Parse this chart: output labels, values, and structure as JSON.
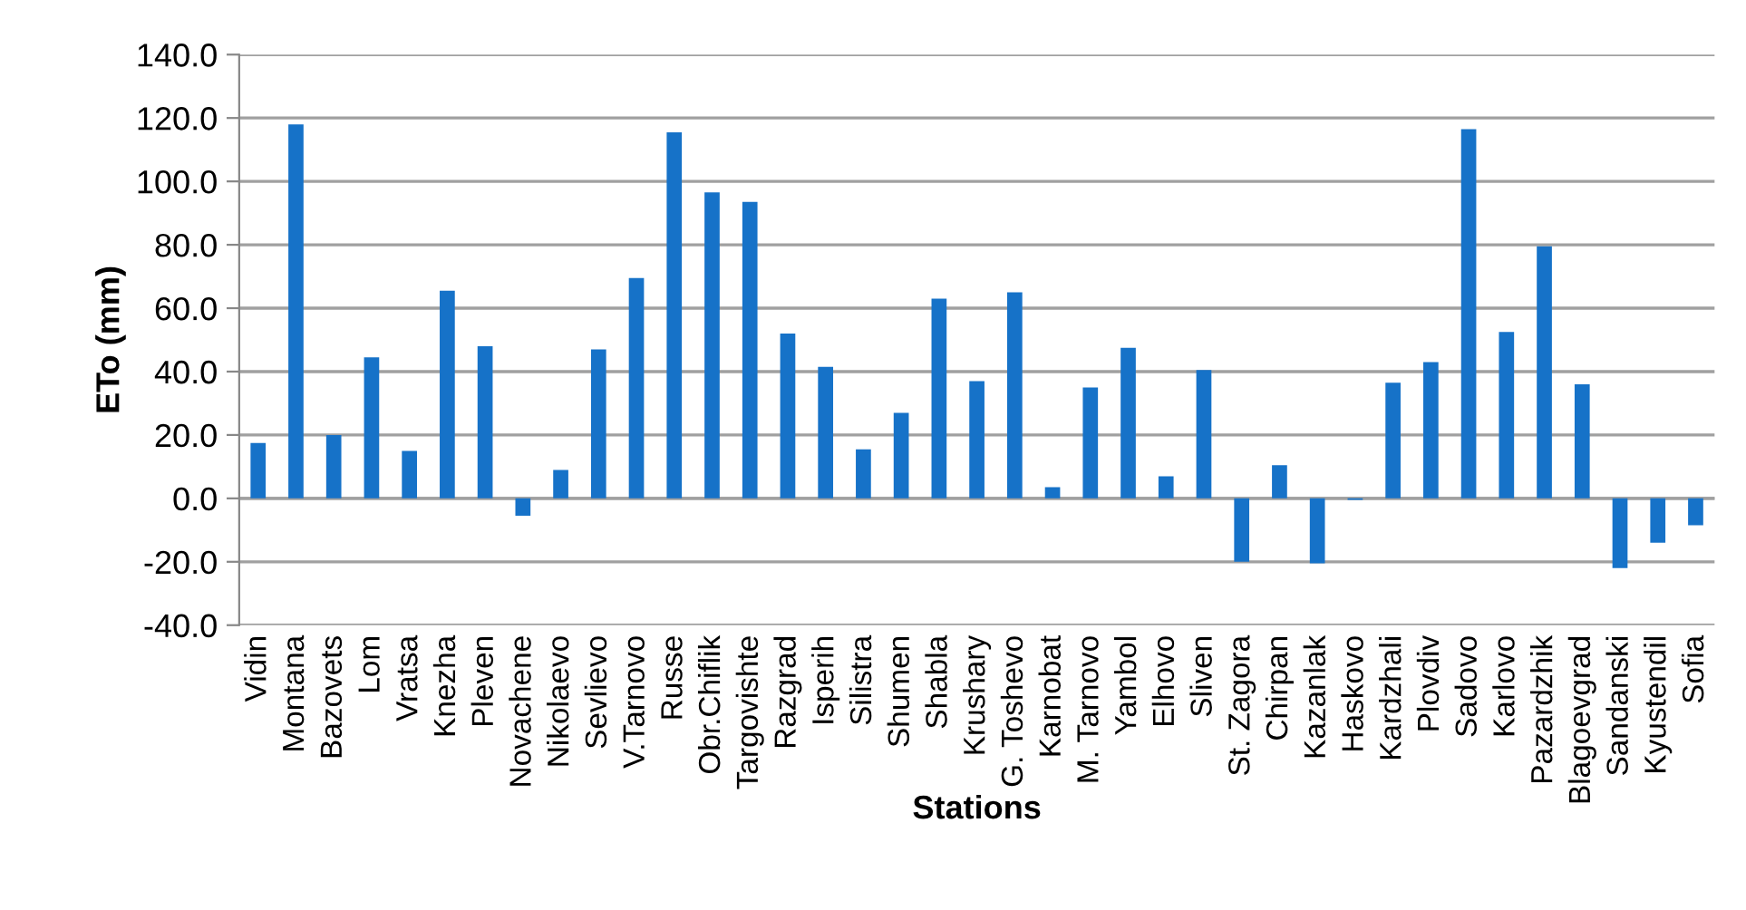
{
  "chart_data": {
    "type": "bar",
    "xlabel": "Stations",
    "ylabel": "ETo (mm)",
    "categories": [
      "Vidin",
      "Montana",
      "Bazovets",
      "Lom",
      "Vratsa",
      "Knezha",
      "Pleven",
      "Novachene",
      "Nikolaevo",
      "Sevlievo",
      "V.Tarnovo",
      "Russe",
      "Obr.Chiflik",
      "Targovishte",
      "Razgrad",
      "Isperih",
      "Silistra",
      "Shumen",
      "Shabla",
      "Krushary",
      "G. Toshevo",
      "Karnobat",
      "M. Tarnovo",
      "Yambol",
      "Elhovo",
      "Sliven",
      "St. Zagora",
      "Chirpan",
      "Kazanlak",
      "Haskovo",
      "Kardzhali",
      "Plovdiv",
      "Sadovo",
      "Karlovo",
      "Pazardzhik",
      "Blagoevgrad",
      "Sandanski",
      "Kyustendil",
      "Sofia"
    ],
    "values": [
      17.5,
      118,
      20,
      44.5,
      15,
      65.5,
      48,
      -5.5,
      9,
      47,
      69.5,
      115.5,
      96.5,
      93.5,
      52,
      41.5,
      15.5,
      27,
      63,
      37,
      65,
      3.5,
      35,
      47.5,
      7,
      40.5,
      -20,
      10.5,
      -20.5,
      -0.5,
      36.5,
      43,
      116.5,
      52.5,
      79.5,
      36,
      -22,
      -14,
      -8.5
    ],
    "color": "#1672c8",
    "ylim": [
      -40,
      140
    ],
    "yticks": [
      {
        "value": -40,
        "label": "-40.0"
      },
      {
        "value": -20,
        "label": "-20.0"
      },
      {
        "value": 0,
        "label": "0.0"
      },
      {
        "value": 20,
        "label": "20.0"
      },
      {
        "value": 40,
        "label": "40.0"
      },
      {
        "value": 60,
        "label": "60.0"
      },
      {
        "value": 80,
        "label": "80.0"
      },
      {
        "value": 100,
        "label": "100.0"
      },
      {
        "value": 120,
        "label": "120.0"
      },
      {
        "value": 140,
        "label": "140.0"
      }
    ],
    "grid": "y",
    "legend": false
  }
}
